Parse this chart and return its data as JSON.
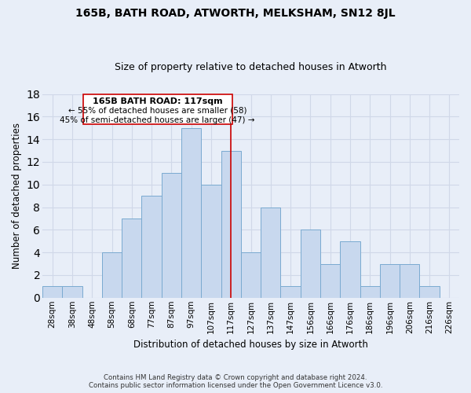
{
  "title": "165B, BATH ROAD, ATWORTH, MELKSHAM, SN12 8JL",
  "subtitle": "Size of property relative to detached houses in Atworth",
  "xlabel": "Distribution of detached houses by size in Atworth",
  "ylabel": "Number of detached properties",
  "bar_labels": [
    "28sqm",
    "38sqm",
    "48sqm",
    "58sqm",
    "68sqm",
    "77sqm",
    "87sqm",
    "97sqm",
    "107sqm",
    "117sqm",
    "127sqm",
    "137sqm",
    "147sqm",
    "156sqm",
    "166sqm",
    "176sqm",
    "186sqm",
    "196sqm",
    "206sqm",
    "216sqm",
    "226sqm"
  ],
  "bar_values": [
    1,
    1,
    0,
    4,
    7,
    9,
    11,
    15,
    10,
    13,
    4,
    8,
    1,
    6,
    3,
    5,
    1,
    3,
    3,
    1,
    0
  ],
  "bar_color": "#c8d8ee",
  "bar_edge_color": "#7aaad0",
  "vline_index": 9,
  "vline_color": "#cc0000",
  "annotation_title": "165B BATH ROAD: 117sqm",
  "annotation_line1": "← 55% of detached houses are smaller (58)",
  "annotation_line2": "45% of semi-detached houses are larger (47) →",
  "ylim": [
    0,
    18
  ],
  "yticks": [
    0,
    2,
    4,
    6,
    8,
    10,
    12,
    14,
    16,
    18
  ],
  "footer1": "Contains HM Land Registry data © Crown copyright and database right 2024.",
  "footer2": "Contains public sector information licensed under the Open Government Licence v3.0.",
  "background_color": "#e8eef8",
  "grid_color": "#d0d8e8",
  "ann_box_color": "#cc0000",
  "ann_fill_color": "#ffffff"
}
